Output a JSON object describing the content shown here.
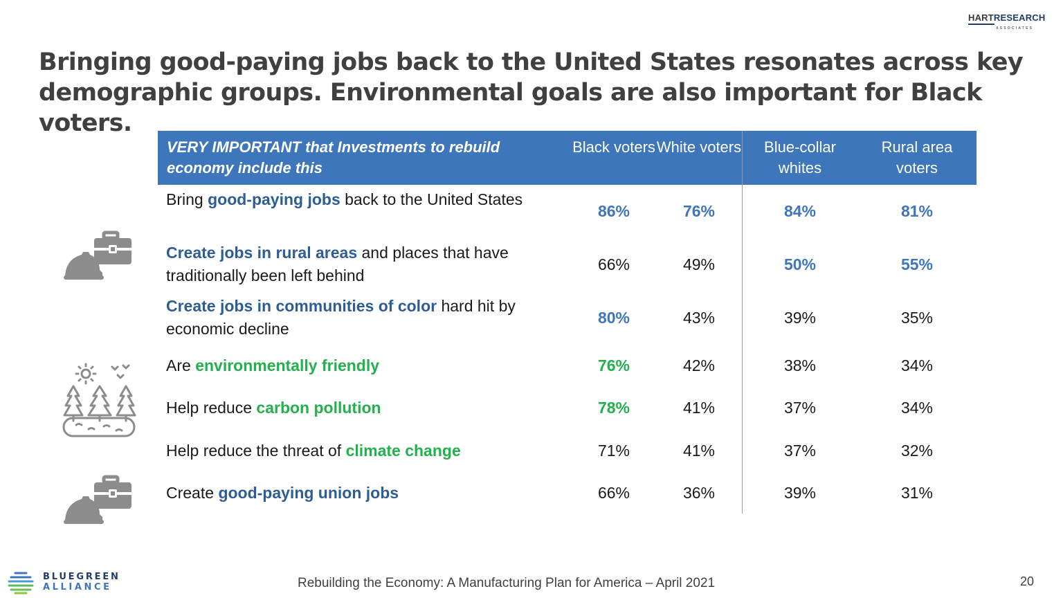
{
  "logo": {
    "line1_a": "HART",
    "line1_b": "RESEARCH",
    "line2": "ASSOCIATES"
  },
  "title": "Bringing good-paying jobs back to the United States resonates across key demographic groups. Environmental goals are also important for Black voters.",
  "table": {
    "header": {
      "question": "VERY IMPORTANT that Investments to rebuild economy include this",
      "columns": [
        "Black voters",
        "White voters",
        "Blue-collar whites",
        "Rural area voters"
      ]
    },
    "rows": [
      {
        "pre": "Bring ",
        "hl": "good-paying jobs",
        "post": " back to the United States",
        "values": [
          "86%",
          "76%",
          "84%",
          "81%"
        ]
      },
      {
        "pre": "",
        "hl": "Create jobs in rural areas",
        "post": " and places that have traditionally been left behind",
        "values": [
          "66%",
          "49%",
          "50%",
          "55%"
        ]
      },
      {
        "pre": "",
        "hl": "Create jobs in communities of color",
        "post": " hard hit by economic decline",
        "values": [
          "80%",
          "43%",
          "39%",
          "35%"
        ]
      },
      {
        "pre": "Are ",
        "hl": "environmentally friendly",
        "post": "",
        "values": [
          "76%",
          "42%",
          "38%",
          "34%"
        ]
      },
      {
        "pre": "Help reduce ",
        "hl": "carbon pollution",
        "post": "",
        "values": [
          "78%",
          "41%",
          "37%",
          "34%"
        ]
      },
      {
        "pre": "Help reduce the threat of ",
        "hl": "climate change",
        "post": "",
        "values": [
          "71%",
          "41%",
          "37%",
          "32%"
        ]
      },
      {
        "pre": "Create ",
        "hl": "good-paying union jobs",
        "post": "",
        "values": [
          "66%",
          "36%",
          "39%",
          "31%"
        ]
      }
    ]
  },
  "icons": [
    "hardhat-briefcase-icon",
    "forest-environment-icon",
    "hardhat-briefcase-icon"
  ],
  "colors": {
    "header_bg": "#3e76bb",
    "highlight_blue": "#2e5d94",
    "highlight_green": "#22b14c",
    "title": "#404040"
  },
  "footer": {
    "text": "Rebuilding the Economy: A Manufacturing Plan for America – April 2021",
    "page": "20",
    "brand_line1": "BLUEGREEN",
    "brand_line2": "ALLIANCE"
  }
}
